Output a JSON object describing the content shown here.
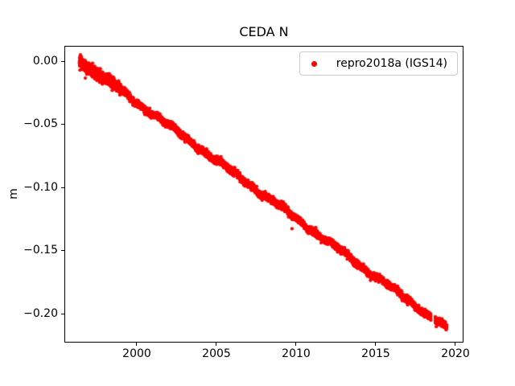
{
  "chart_data": {
    "type": "scatter",
    "title": "CEDA N",
    "xlabel": "",
    "ylabel": "m",
    "grid": false,
    "legend_location": "upper right",
    "xlim": [
      1995.45,
      2020.51
    ],
    "ylim": [
      -0.223,
      0.012
    ],
    "xticks": [
      2000,
      2005,
      2010,
      2015,
      2020
    ],
    "xtick_labels": [
      "2000",
      "2005",
      "2010",
      "2015",
      "2020"
    ],
    "yticks": [
      0.0,
      -0.05,
      -0.1,
      -0.15,
      -0.2
    ],
    "ytick_labels": [
      "0.00",
      "−0.05",
      "−0.10",
      "−0.15",
      "−0.20"
    ],
    "series": [
      {
        "name": "repro2018a (IGS14)",
        "color": "#ff0000",
        "marker": "point",
        "x_start": 1996.35,
        "x_end": 2019.5,
        "intercept_m": 0.001,
        "slope_m_per_yr": -0.00921,
        "trend_samples": {
          "x": [
            1996.35,
            2000,
            2005,
            2010,
            2015,
            2019.5
          ],
          "y": [
            0.001,
            -0.033,
            -0.079,
            -0.125,
            -0.171,
            -0.212
          ]
        },
        "noise_sigma_m": 0.0013,
        "noisy_before_year": 1999.0,
        "early_noise_factor": 1.7,
        "seasonal_amp_m": 0.0008,
        "wander_amp_m": 0.0012,
        "wander_period_yr": 3.5,
        "n_points": 7000,
        "gaps": [
          [
            2018.5,
            2018.78
          ]
        ],
        "outliers": [
          [
            1996.72,
            -0.013
          ],
          [
            2009.75,
            -0.133
          ]
        ]
      }
    ]
  }
}
